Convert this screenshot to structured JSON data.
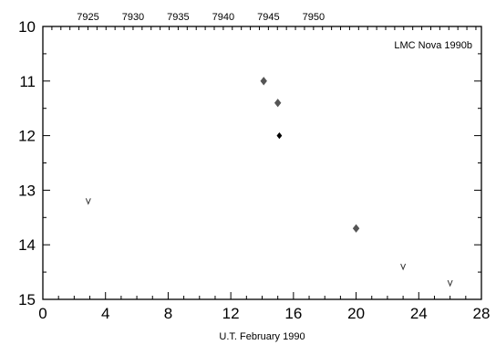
{
  "chart_data": {
    "type": "scatter",
    "title": "LMC Nova 1990b",
    "xlabel": "U.T. February 1990",
    "ylabel": "",
    "xlim": [
      0,
      28
    ],
    "ylim": [
      15,
      10
    ],
    "y_inverted": true,
    "x_ticks": [
      "0",
      "4",
      "8",
      "12",
      "16",
      "20",
      "24",
      "28"
    ],
    "y_ticks": [
      "10",
      "11",
      "12",
      "13",
      "14",
      "15"
    ],
    "top_axis": {
      "labels": [
        "7925",
        "7930",
        "7935",
        "7940",
        "7945",
        "7950"
      ],
      "x_positions": [
        2.88,
        5.76,
        8.64,
        11.52,
        14.4,
        17.28
      ],
      "ticks_x": [
        0,
        0.576,
        1.152,
        1.728,
        2.304,
        2.88,
        3.456,
        4.032,
        4.608,
        5.184,
        5.76,
        6.336,
        6.912,
        7.488,
        8.064,
        8.64,
        9.216,
        9.792,
        10.368,
        10.944,
        11.52,
        12.096,
        12.672,
        13.248,
        13.824,
        14.4,
        14.976,
        15.552,
        16.128,
        16.704,
        17.28,
        17.856,
        18.432,
        19.008,
        19.584,
        20.16,
        20.736,
        21.312,
        21.888,
        22.464,
        23.04,
        23.616,
        24.192,
        24.768,
        25.344,
        25.92,
        26.496,
        27.072,
        27.648
      ]
    },
    "series": [
      {
        "marker": "diamond-gray",
        "points": [
          {
            "x": 14.1,
            "y": 11.0
          },
          {
            "x": 15.0,
            "y": 11.4
          },
          {
            "x": 20.0,
            "y": 13.7
          }
        ]
      },
      {
        "marker": "diamond-black",
        "points": [
          {
            "x": 15.1,
            "y": 12.0
          }
        ]
      },
      {
        "marker": "upper-limit-v",
        "points": [
          {
            "x": 2.9,
            "y": 13.2
          },
          {
            "x": 23.0,
            "y": 14.4
          },
          {
            "x": 26.0,
            "y": 14.7
          }
        ]
      }
    ],
    "grid": false,
    "colors": {
      "gray_marker": "#555555",
      "black_marker": "#000000",
      "axes": "#000000"
    }
  }
}
